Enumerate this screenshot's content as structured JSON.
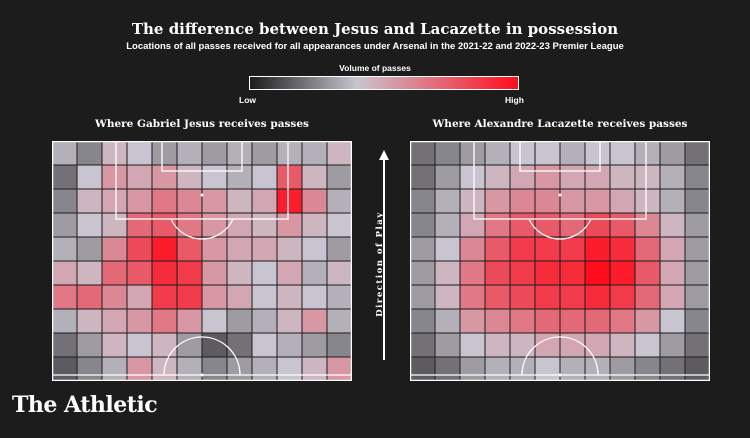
{
  "title": "The difference between Jesus and Lacazette in possession",
  "subtitle": "Locations of all passes received for all appearances under Arsenal in the 2021-22 and 2022-23 Premier League",
  "legend": {
    "title": "Volume of passes",
    "low": "Low",
    "high": "High",
    "colors": [
      "#1c1c1c",
      "#c9c5d0",
      "#ff0d1d"
    ]
  },
  "direction_label": "Direction of Play",
  "brand": "The Athletic",
  "chart_data": [
    {
      "type": "heatmap",
      "title": "Where Gabriel Jesus receives passes",
      "scale": "relative volume 0 (low) to 1 (high)",
      "grid": [
        [
          0.35,
          0.25,
          0.45,
          0.4,
          0.3,
          0.35,
          0.3,
          0.35,
          0.3,
          0.35,
          0.35,
          0.45
        ],
        [
          0.2,
          0.4,
          0.55,
          0.5,
          0.55,
          0.45,
          0.4,
          0.35,
          0.4,
          0.75,
          0.45,
          0.3
        ],
        [
          0.25,
          0.45,
          0.5,
          0.55,
          0.65,
          0.6,
          0.55,
          0.45,
          0.5,
          0.95,
          0.6,
          0.35
        ],
        [
          0.3,
          0.4,
          0.45,
          0.7,
          0.75,
          0.65,
          0.55,
          0.5,
          0.45,
          0.55,
          0.45,
          0.4
        ],
        [
          0.35,
          0.3,
          0.6,
          0.8,
          0.95,
          0.75,
          0.55,
          0.5,
          0.5,
          0.45,
          0.4,
          0.3
        ],
        [
          0.5,
          0.45,
          0.7,
          0.75,
          0.9,
          0.85,
          0.55,
          0.45,
          0.4,
          0.5,
          0.35,
          0.45
        ],
        [
          0.65,
          0.7,
          0.6,
          0.5,
          0.85,
          0.85,
          0.55,
          0.5,
          0.4,
          0.45,
          0.4,
          0.35
        ],
        [
          0.35,
          0.45,
          0.5,
          0.55,
          0.65,
          0.55,
          0.4,
          0.3,
          0.35,
          0.45,
          0.55,
          0.35
        ],
        [
          0.2,
          0.3,
          0.45,
          0.4,
          0.45,
          0.3,
          0.15,
          0.2,
          0.4,
          0.35,
          0.3,
          0.25
        ],
        [
          0.15,
          0.25,
          0.35,
          0.55,
          0.45,
          0.35,
          0.25,
          0.3,
          0.35,
          0.4,
          0.45,
          0.55
        ]
      ]
    },
    {
      "type": "heatmap",
      "title": "Where Alexandre Lacazette receives passes",
      "scale": "relative volume 0 (low) to 1 (high)",
      "grid": [
        [
          0.2,
          0.25,
          0.3,
          0.35,
          0.4,
          0.4,
          0.35,
          0.4,
          0.4,
          0.35,
          0.3,
          0.2
        ],
        [
          0.2,
          0.3,
          0.4,
          0.45,
          0.5,
          0.55,
          0.5,
          0.5,
          0.45,
          0.45,
          0.35,
          0.25
        ],
        [
          0.25,
          0.35,
          0.45,
          0.55,
          0.6,
          0.6,
          0.55,
          0.55,
          0.5,
          0.45,
          0.35,
          0.25
        ],
        [
          0.25,
          0.35,
          0.5,
          0.65,
          0.75,
          0.75,
          0.7,
          0.8,
          0.75,
          0.6,
          0.45,
          0.3
        ],
        [
          0.3,
          0.4,
          0.6,
          0.75,
          0.85,
          0.85,
          0.85,
          0.95,
          0.9,
          0.7,
          0.5,
          0.3
        ],
        [
          0.3,
          0.45,
          0.65,
          0.8,
          0.85,
          0.9,
          0.9,
          1.0,
          0.95,
          0.75,
          0.5,
          0.3
        ],
        [
          0.3,
          0.45,
          0.65,
          0.75,
          0.8,
          0.85,
          0.85,
          0.9,
          0.85,
          0.7,
          0.5,
          0.3
        ],
        [
          0.25,
          0.35,
          0.55,
          0.6,
          0.65,
          0.7,
          0.7,
          0.7,
          0.65,
          0.55,
          0.4,
          0.25
        ],
        [
          0.2,
          0.3,
          0.4,
          0.45,
          0.45,
          0.5,
          0.5,
          0.5,
          0.45,
          0.4,
          0.3,
          0.2
        ],
        [
          0.15,
          0.2,
          0.3,
          0.35,
          0.35,
          0.4,
          0.35,
          0.35,
          0.3,
          0.25,
          0.2,
          0.15
        ]
      ]
    }
  ]
}
